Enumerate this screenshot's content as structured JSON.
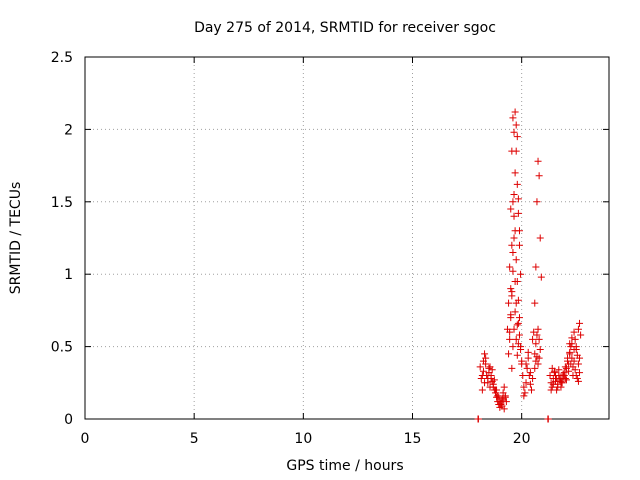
{
  "chart_data": {
    "type": "scatter",
    "title": "Day 275 of 2014, SRMTID for receiver sgoc",
    "xlabel": "GPS time / hours",
    "ylabel": "SRMTID / TECUs",
    "xlim": [
      0,
      24
    ],
    "ylim": [
      0,
      2.5
    ],
    "xticks": [
      0,
      5,
      10,
      15,
      20
    ],
    "yticks": [
      0,
      0.5,
      1,
      1.5,
      2,
      2.5
    ],
    "xtick_labels": [
      "0",
      "5",
      "10",
      "15",
      "20"
    ],
    "ytick_labels": [
      "0",
      "0.5",
      "1",
      "1.5",
      "2",
      "2.5"
    ],
    "grid": true,
    "marker": "plus",
    "series": [
      {
        "name": "SRMTID",
        "color": "#dd0000",
        "x": [
          18.1,
          18.15,
          18.2,
          18.25,
          18.3,
          18.35,
          18.4,
          18.45,
          18.5,
          18.55,
          18.6,
          18.65,
          18.7,
          18.75,
          18.8,
          18.85,
          18.9,
          18.95,
          19.0,
          19.05,
          19.1,
          19.15,
          19.2,
          19.25,
          19.3,
          18.2,
          18.3,
          18.4,
          18.5,
          18.6,
          18.7,
          18.8,
          18.9,
          19.0,
          19.1,
          19.2,
          18.25,
          18.35,
          18.45,
          18.55,
          18.65,
          18.75,
          18.85,
          18.95,
          19.05,
          19.15,
          19.25,
          19.35,
          19.4,
          19.45,
          19.5,
          19.55,
          19.6,
          19.65,
          19.7,
          19.75,
          19.8,
          19.85,
          19.9,
          19.95,
          20.0,
          19.4,
          19.45,
          19.5,
          19.55,
          19.6,
          19.65,
          19.7,
          19.75,
          19.8,
          19.85,
          19.9,
          19.95,
          19.5,
          19.55,
          19.6,
          19.65,
          19.7,
          19.75,
          19.8,
          19.85,
          19.9,
          19.55,
          19.6,
          19.65,
          19.7,
          19.75,
          19.8,
          19.85,
          19.9,
          19.95,
          20.0,
          19.45,
          19.5,
          19.55,
          19.6,
          19.65,
          19.7,
          19.75,
          19.8,
          19.85,
          20.05,
          20.1,
          20.15,
          20.2,
          20.25,
          20.3,
          20.35,
          20.4,
          20.45,
          20.5,
          20.1,
          20.2,
          20.3,
          20.4,
          20.5,
          20.55,
          20.6,
          20.65,
          20.7,
          20.75,
          20.8,
          20.85,
          20.9,
          20.6,
          20.65,
          20.7,
          20.75,
          20.8,
          20.85,
          20.6,
          20.65,
          20.7,
          20.75,
          20.8,
          21.3,
          21.35,
          21.4,
          21.45,
          21.5,
          21.55,
          21.6,
          21.65,
          21.7,
          21.75,
          21.8,
          21.85,
          21.9,
          21.95,
          22.0,
          22.05,
          22.1,
          22.15,
          22.2,
          22.25,
          22.3,
          22.35,
          22.4,
          22.45,
          22.5,
          22.55,
          22.6,
          22.65,
          21.35,
          21.45,
          21.55,
          21.65,
          21.75,
          21.85,
          21.95,
          22.05,
          22.15,
          22.25,
          22.35,
          22.45,
          22.55,
          22.65,
          21.4,
          21.5,
          21.6,
          21.7,
          21.8,
          21.9,
          22.0,
          22.1,
          22.2,
          22.3,
          22.4,
          22.5,
          22.6,
          22.2,
          22.3,
          22.4,
          22.5,
          22.6,
          22.65,
          22.7,
          18.0,
          18.02,
          21.2,
          21.22
        ],
        "y": [
          0.36,
          0.28,
          0.3,
          0.4,
          0.45,
          0.38,
          0.3,
          0.25,
          0.32,
          0.36,
          0.3,
          0.26,
          0.22,
          0.2,
          0.18,
          0.15,
          0.12,
          0.1,
          0.08,
          0.1,
          0.14,
          0.18,
          0.22,
          0.15,
          0.12,
          0.2,
          0.25,
          0.3,
          0.35,
          0.28,
          0.24,
          0.2,
          0.16,
          0.12,
          0.09,
          0.07,
          0.33,
          0.42,
          0.28,
          0.22,
          0.34,
          0.27,
          0.2,
          0.15,
          0.11,
          0.13,
          0.16,
          0.62,
          0.8,
          1.05,
          1.45,
          1.85,
          2.08,
          1.55,
          1.3,
          1.1,
          0.95,
          0.82,
          0.7,
          0.5,
          0.4,
          0.45,
          0.6,
          0.9,
          1.2,
          1.5,
          1.98,
          2.12,
          1.85,
          1.62,
          1.42,
          1.2,
          1.0,
          0.7,
          0.85,
          1.15,
          1.4,
          1.7,
          2.03,
          1.95,
          1.52,
          1.3,
          0.35,
          0.5,
          0.62,
          0.74,
          0.55,
          0.44,
          0.66,
          0.58,
          0.48,
          0.38,
          0.55,
          0.72,
          0.88,
          1.02,
          1.25,
          0.95,
          0.8,
          0.65,
          0.52,
          0.3,
          0.22,
          0.18,
          0.25,
          0.35,
          0.42,
          0.3,
          0.24,
          0.2,
          0.28,
          0.16,
          0.38,
          0.46,
          0.32,
          0.55,
          0.6,
          0.8,
          1.05,
          1.5,
          1.78,
          1.68,
          1.25,
          0.98,
          0.45,
          0.52,
          0.58,
          0.62,
          0.55,
          0.48,
          0.35,
          0.4,
          0.43,
          0.38,
          0.42,
          0.3,
          0.25,
          0.22,
          0.28,
          0.33,
          0.26,
          0.2,
          0.24,
          0.3,
          0.27,
          0.22,
          0.25,
          0.29,
          0.32,
          0.28,
          0.35,
          0.4,
          0.38,
          0.45,
          0.5,
          0.42,
          0.36,
          0.48,
          0.55,
          0.5,
          0.44,
          0.38,
          0.42,
          0.2,
          0.24,
          0.3,
          0.22,
          0.28,
          0.25,
          0.3,
          0.27,
          0.33,
          0.38,
          0.3,
          0.34,
          0.28,
          0.32,
          0.35,
          0.32,
          0.28,
          0.34,
          0.26,
          0.31,
          0.36,
          0.42,
          0.46,
          0.52,
          0.4,
          0.3,
          0.26,
          0.52,
          0.56,
          0.6,
          0.48,
          0.62,
          0.66,
          0.58,
          0.0,
          0.0,
          0.0,
          0.0
        ]
      }
    ]
  }
}
